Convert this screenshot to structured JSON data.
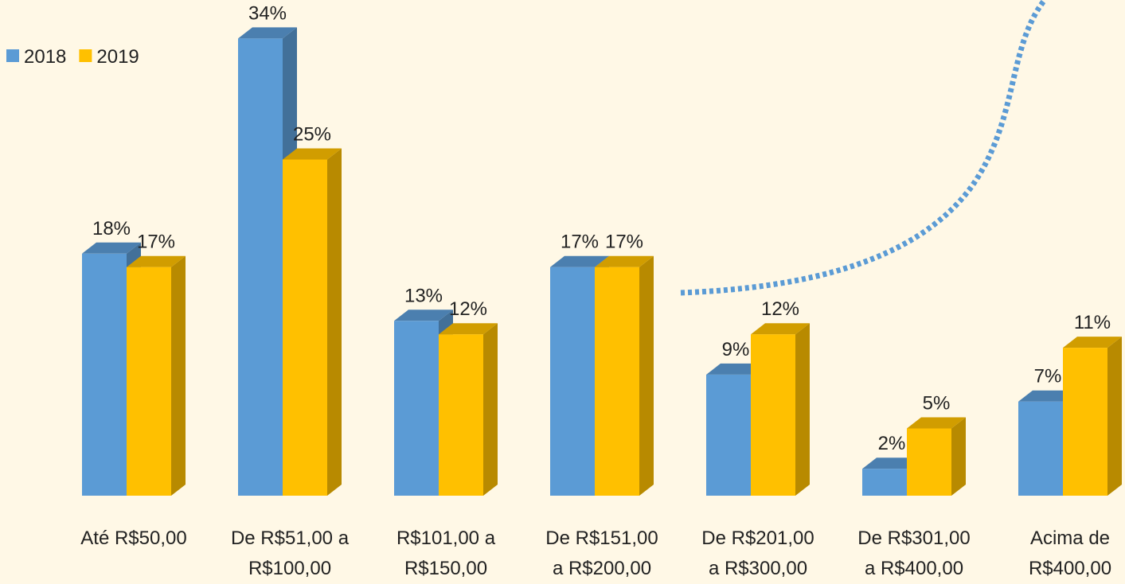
{
  "chart_data": {
    "type": "bar3d",
    "categories": [
      "Até R$50,00",
      "De R$51,00 a\nR$100,00",
      "R$101,00 a\nR$150,00",
      "De R$151,00\na R$200,00",
      "De R$201,00\na R$300,00",
      "De R$301,00\na R$400,00",
      "Acima de\nR$400,00"
    ],
    "series": [
      {
        "name": "2018",
        "color": "#5b9bd5",
        "values": [
          18,
          34,
          13,
          17,
          9,
          2,
          7
        ],
        "value_labels": [
          "18%",
          "34%",
          "13%",
          "17%",
          "9%",
          "2%",
          "7%"
        ]
      },
      {
        "name": "2019",
        "color": "#ffc000",
        "values": [
          17,
          25,
          12,
          17,
          12,
          5,
          11
        ],
        "value_labels": [
          "17%",
          "25%",
          "12%",
          "17%",
          "12%",
          "5%",
          "11%"
        ]
      }
    ],
    "legend": "top-left"
  }
}
